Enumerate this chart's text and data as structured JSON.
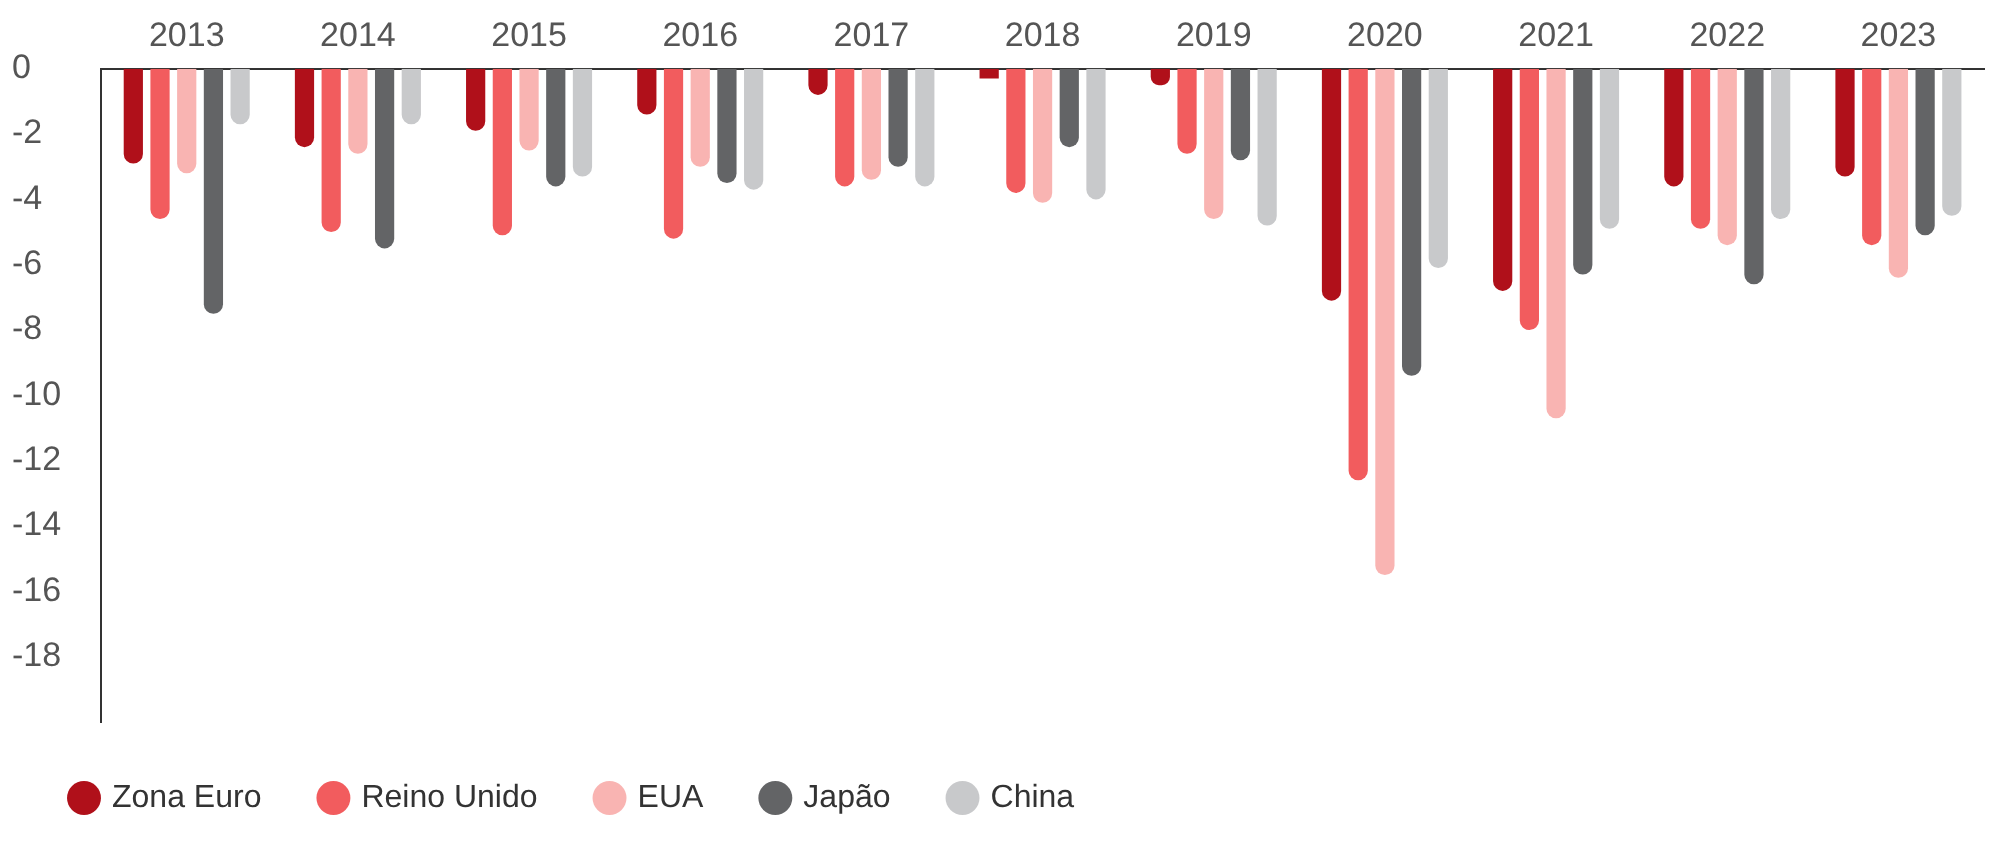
{
  "chart_data": {
    "type": "bar",
    "categories": [
      "2013",
      "2014",
      "2015",
      "2016",
      "2017",
      "2018",
      "2019",
      "2020",
      "2021",
      "2022",
      "2023"
    ],
    "series": [
      {
        "name": "Zona Euro",
        "color": "#b0101a",
        "values": [
          -2.9,
          -2.4,
          -1.9,
          -1.4,
          -0.8,
          -0.3,
          -0.5,
          -7.1,
          -6.8,
          -3.6,
          -3.3
        ]
      },
      {
        "name": "Reino Unido",
        "color": "#f25c5e",
        "values": [
          -4.6,
          -5.0,
          -5.1,
          -5.2,
          -3.6,
          -3.8,
          -2.6,
          -12.6,
          -8.0,
          -4.9,
          -5.4
        ]
      },
      {
        "name": "EUA",
        "color": "#f9b4b2",
        "values": [
          -3.2,
          -2.6,
          -2.5,
          -3.0,
          -3.4,
          -4.1,
          -4.6,
          -15.5,
          -10.7,
          -5.4,
          -6.4
        ]
      },
      {
        "name": "Japão",
        "color": "#636466",
        "values": [
          -7.5,
          -5.5,
          -3.6,
          -3.5,
          -3.0,
          -2.4,
          -2.8,
          -9.4,
          -6.3,
          -6.6,
          -5.1
        ]
      },
      {
        "name": "China",
        "color": "#c8c9cb",
        "values": [
          -1.7,
          -1.7,
          -3.3,
          -3.7,
          -3.6,
          -4.0,
          -4.8,
          -6.1,
          -4.9,
          -4.6,
          -4.5
        ]
      }
    ],
    "ylim": [
      -20,
      0
    ],
    "yticks": [
      0,
      -2,
      -4,
      -6,
      -8,
      -10,
      -12,
      -14,
      -16,
      -18
    ],
    "grid": false,
    "legend": "bottom left"
  }
}
